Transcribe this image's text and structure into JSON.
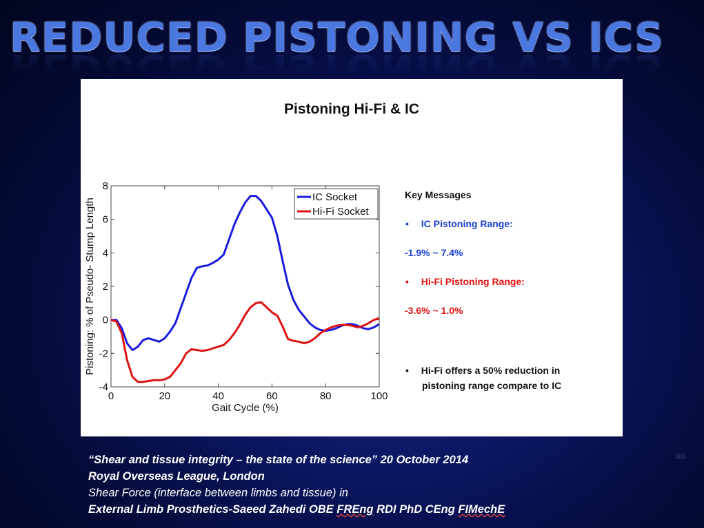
{
  "slide": {
    "title": "REDUCED PISTONING VS ICS",
    "page_number": "80"
  },
  "chart_data": {
    "type": "line",
    "title": "Pistoning Hi-Fi & IC",
    "xlabel": "Gait Cycle (%)",
    "ylabel": "Pistoning: % of Pseudo- Stump Length",
    "xlim": [
      0,
      100
    ],
    "ylim": [
      -4,
      8
    ],
    "x_ticks": [
      0,
      20,
      40,
      60,
      80,
      100
    ],
    "y_ticks": [
      -4,
      -2,
      0,
      2,
      4,
      6,
      8
    ],
    "legend_position": "top-right",
    "series": [
      {
        "name": "IC Socket",
        "color": "#1a1adf",
        "x": [
          0,
          2,
          4,
          6,
          8,
          10,
          12,
          14,
          16,
          18,
          20,
          22,
          24,
          26,
          28,
          30,
          32,
          34,
          36,
          38,
          40,
          42,
          44,
          46,
          48,
          50,
          52,
          54,
          56,
          58,
          60,
          62,
          64,
          66,
          68,
          70,
          72,
          74,
          76,
          78,
          80,
          82,
          84,
          86,
          88,
          90,
          92,
          94,
          96,
          98,
          100
        ],
        "y": [
          0.0,
          0.0,
          -0.5,
          -1.4,
          -1.8,
          -1.6,
          -1.2,
          -1.1,
          -1.2,
          -1.3,
          -1.1,
          -0.7,
          -0.2,
          0.7,
          1.6,
          2.5,
          3.1,
          3.2,
          3.25,
          3.4,
          3.6,
          3.9,
          4.8,
          5.7,
          6.4,
          7.0,
          7.4,
          7.4,
          7.1,
          6.6,
          6.1,
          5.0,
          3.5,
          2.1,
          1.2,
          0.6,
          0.2,
          -0.2,
          -0.45,
          -0.6,
          -0.65,
          -0.6,
          -0.5,
          -0.35,
          -0.25,
          -0.25,
          -0.35,
          -0.5,
          -0.55,
          -0.45,
          -0.25
        ]
      },
      {
        "name": "Hi-Fi Socket",
        "color": "#dd1111",
        "x": [
          0,
          2,
          4,
          6,
          8,
          10,
          12,
          14,
          16,
          18,
          20,
          22,
          24,
          26,
          28,
          30,
          32,
          34,
          36,
          38,
          40,
          42,
          44,
          46,
          48,
          50,
          52,
          54,
          56,
          58,
          60,
          62,
          64,
          66,
          68,
          70,
          72,
          74,
          76,
          78,
          80,
          82,
          84,
          86,
          88,
          90,
          92,
          94,
          96,
          98,
          100
        ],
        "y": [
          0.0,
          -0.1,
          -0.8,
          -2.4,
          -3.4,
          -3.7,
          -3.7,
          -3.65,
          -3.6,
          -3.6,
          -3.55,
          -3.4,
          -3.0,
          -2.6,
          -2.0,
          -1.75,
          -1.8,
          -1.85,
          -1.8,
          -1.7,
          -1.6,
          -1.5,
          -1.2,
          -0.8,
          -0.3,
          0.3,
          0.75,
          1.0,
          1.05,
          0.75,
          0.45,
          0.25,
          -0.4,
          -1.15,
          -1.25,
          -1.3,
          -1.4,
          -1.3,
          -1.1,
          -0.8,
          -0.6,
          -0.45,
          -0.35,
          -0.3,
          -0.3,
          -0.35,
          -0.45,
          -0.35,
          -0.2,
          0.0,
          0.1
        ]
      }
    ]
  },
  "key_messages": {
    "heading": "Key Messages",
    "ic_label": "IC Pistoning Range:",
    "ic_range": "-1.9% ~ 7.4%",
    "hifi_label": "Hi-Fi Pistoning Range:",
    "hifi_range": "-3.6% ~ 1.0%",
    "summary_line1": "Hi-Fi offers a 50% reduction in",
    "summary_line2": "pistoning range compare to IC",
    "bullet": "•",
    "ic_color": "#1a3fd4",
    "hifi_color": "#e01010"
  },
  "footer": {
    "line1": "“Shear and tissue integrity – the state of the science” 20 October 2014",
    "line2": "Royal Overseas League, London",
    "line3": "Shear Force (interface between limbs and tissue) in",
    "line4_prefix": "External Limb Prosthetics-Saeed Zahedi OBE ",
    "line4_freng": "FREng",
    "line4_mid": " RDI PhD CEng ",
    "line4_fimeche": "FIMechE"
  }
}
